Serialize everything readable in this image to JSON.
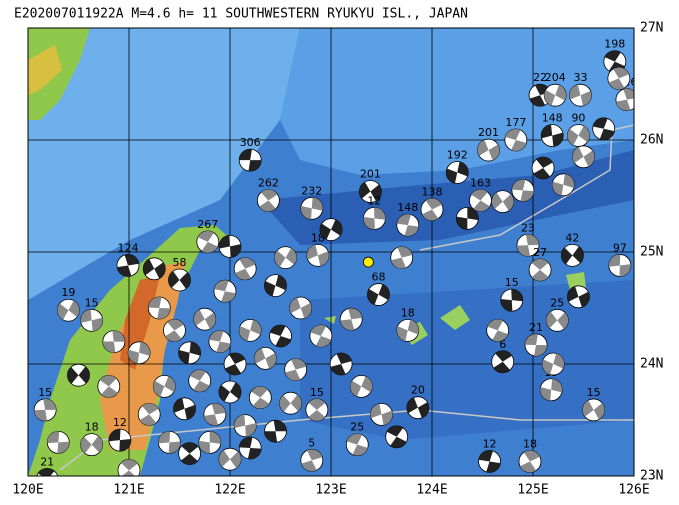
{
  "map": {
    "title": "E202007011922A  M=4.6  h= 11  SOUTHWESTERN RYUKYU ISL., JAPAN",
    "lonlim": [
      120,
      126
    ],
    "latlim": [
      23,
      27
    ],
    "lon_ticks": [
      {
        "value": 120,
        "label": "120E"
      },
      {
        "value": 121,
        "label": "121E"
      },
      {
        "value": 122,
        "label": "122E"
      },
      {
        "value": 123,
        "label": "123E"
      },
      {
        "value": 124,
        "label": "124E"
      },
      {
        "value": 125,
        "label": "125E"
      },
      {
        "value": 126,
        "label": "126E"
      }
    ],
    "lat_ticks": [
      {
        "value": 23,
        "label": "23N"
      },
      {
        "value": 24,
        "label": "24N"
      },
      {
        "value": 25,
        "label": "25N"
      },
      {
        "value": 26,
        "label": "26N"
      },
      {
        "value": 27,
        "label": "27N"
      }
    ],
    "epicenter": {
      "lon": 123.37,
      "lat": 24.91
    },
    "events": [
      {
        "lon": 122.2,
        "lat": 25.82,
        "label": "306"
      },
      {
        "lon": 122.38,
        "lat": 25.46,
        "label": "262"
      },
      {
        "lon": 122.81,
        "lat": 25.39,
        "label": "232"
      },
      {
        "lon": 123.39,
        "lat": 25.54,
        "label": "201"
      },
      {
        "lon": 123.76,
        "lat": 25.24,
        "label": "148"
      },
      {
        "lon": 124.0,
        "lat": 25.38,
        "label": "138"
      },
      {
        "lon": 124.25,
        "lat": 25.71,
        "label": "192"
      },
      {
        "lon": 124.56,
        "lat": 25.91,
        "label": "201"
      },
      {
        "lon": 124.83,
        "lat": 26.0,
        "label": "177"
      },
      {
        "lon": 125.07,
        "lat": 26.4,
        "label": "22"
      },
      {
        "lon": 125.22,
        "lat": 26.4,
        "label": "204"
      },
      {
        "lon": 125.47,
        "lat": 26.4,
        "label": "33"
      },
      {
        "lon": 125.81,
        "lat": 26.7,
        "label": "198"
      },
      {
        "lon": 125.93,
        "lat": 26.36,
        "label": "126"
      },
      {
        "lon": 125.45,
        "lat": 26.04,
        "label": "90"
      },
      {
        "lon": 125.19,
        "lat": 26.04,
        "label": "148"
      },
      {
        "lon": 124.48,
        "lat": 25.46,
        "label": "163"
      },
      {
        "lon": 124.95,
        "lat": 25.06,
        "label": "23"
      },
      {
        "lon": 125.39,
        "lat": 24.97,
        "label": "42"
      },
      {
        "lon": 125.86,
        "lat": 24.88,
        "label": "97"
      },
      {
        "lon": 125.07,
        "lat": 24.84,
        "label": "27"
      },
      {
        "lon": 124.79,
        "lat": 24.57,
        "label": "15"
      },
      {
        "lon": 125.24,
        "lat": 24.39,
        "label": "25"
      },
      {
        "lon": 125.03,
        "lat": 24.17,
        "label": "21"
      },
      {
        "lon": 124.7,
        "lat": 24.02,
        "label": "6"
      },
      {
        "lon": 125.18,
        "lat": 23.77,
        "label": "15"
      },
      {
        "lon": 125.6,
        "lat": 23.59,
        "label": "15"
      },
      {
        "lon": 124.57,
        "lat": 23.13,
        "label": "12"
      },
      {
        "lon": 124.97,
        "lat": 23.13,
        "label": "18"
      },
      {
        "lon": 123.76,
        "lat": 24.3,
        "label": "18"
      },
      {
        "lon": 123.86,
        "lat": 23.61,
        "label": "20"
      },
      {
        "lon": 123.26,
        "lat": 23.28,
        "label": "25"
      },
      {
        "lon": 122.81,
        "lat": 23.14,
        "label": "5"
      },
      {
        "lon": 123.47,
        "lat": 24.62,
        "label": "68"
      },
      {
        "lon": 122.87,
        "lat": 24.97,
        "label": "18"
      },
      {
        "lon": 121.78,
        "lat": 25.09,
        "label": "267"
      },
      {
        "lon": 120.99,
        "lat": 24.88,
        "label": "124"
      },
      {
        "lon": 120.4,
        "lat": 24.48,
        "label": "19"
      },
      {
        "lon": 120.63,
        "lat": 24.39,
        "label": "15"
      },
      {
        "lon": 120.19,
        "lat": 22.97,
        "label": "21"
      },
      {
        "lon": 120.17,
        "lat": 23.59,
        "label": "15"
      },
      {
        "lon": 120.63,
        "lat": 23.28,
        "label": "18"
      },
      {
        "lon": 120.91,
        "lat": 23.32,
        "label": "12"
      },
      {
        "lon": 122.86,
        "lat": 23.59,
        "label": "15"
      },
      {
        "lon": 123.43,
        "lat": 25.3,
        "label": "12"
      },
      {
        "lon": 121.5,
        "lat": 24.75,
        "label": "58"
      },
      {
        "lon": 121.3,
        "lat": 24.5
      },
      {
        "lon": 121.45,
        "lat": 24.3
      },
      {
        "lon": 121.6,
        "lat": 24.1
      },
      {
        "lon": 121.75,
        "lat": 24.4
      },
      {
        "lon": 121.9,
        "lat": 24.2
      },
      {
        "lon": 122.05,
        "lat": 24.0
      },
      {
        "lon": 122.2,
        "lat": 24.3
      },
      {
        "lon": 122.35,
        "lat": 24.05
      },
      {
        "lon": 122.5,
        "lat": 24.25
      },
      {
        "lon": 122.65,
        "lat": 23.95
      },
      {
        "lon": 121.35,
        "lat": 23.8
      },
      {
        "lon": 121.55,
        "lat": 23.6
      },
      {
        "lon": 121.7,
        "lat": 23.85
      },
      {
        "lon": 121.85,
        "lat": 23.55
      },
      {
        "lon": 122.0,
        "lat": 23.75
      },
      {
        "lon": 122.15,
        "lat": 23.45
      },
      {
        "lon": 122.3,
        "lat": 23.7
      },
      {
        "lon": 122.45,
        "lat": 23.4
      },
      {
        "lon": 122.6,
        "lat": 23.65
      },
      {
        "lon": 121.4,
        "lat": 23.3
      },
      {
        "lon": 121.6,
        "lat": 23.2
      },
      {
        "lon": 121.8,
        "lat": 23.3
      },
      {
        "lon": 122.0,
        "lat": 23.15
      },
      {
        "lon": 122.2,
        "lat": 23.25
      },
      {
        "lon": 121.2,
        "lat": 23.55
      },
      {
        "lon": 121.1,
        "lat": 24.1
      },
      {
        "lon": 121.25,
        "lat": 24.85
      },
      {
        "lon": 121.95,
        "lat": 24.65
      },
      {
        "lon": 122.15,
        "lat": 24.85
      },
      {
        "lon": 122.45,
        "lat": 24.7
      },
      {
        "lon": 122.7,
        "lat": 24.5
      },
      {
        "lon": 122.9,
        "lat": 24.25
      },
      {
        "lon": 123.1,
        "lat": 24.0
      },
      {
        "lon": 123.3,
        "lat": 23.8
      },
      {
        "lon": 123.5,
        "lat": 23.55
      },
      {
        "lon": 123.65,
        "lat": 23.35
      },
      {
        "lon": 123.2,
        "lat": 24.4
      },
      {
        "lon": 122.55,
        "lat": 24.95
      },
      {
        "lon": 122.0,
        "lat": 25.05
      },
      {
        "lon": 120.8,
        "lat": 23.8
      },
      {
        "lon": 120.85,
        "lat": 24.2
      },
      {
        "lon": 120.5,
        "lat": 23.9
      },
      {
        "lon": 120.3,
        "lat": 23.3
      },
      {
        "lon": 121.0,
        "lat": 23.05
      },
      {
        "lon": 124.35,
        "lat": 25.3
      },
      {
        "lon": 124.7,
        "lat": 25.45
      },
      {
        "lon": 124.9,
        "lat": 25.55
      },
      {
        "lon": 125.1,
        "lat": 25.75
      },
      {
        "lon": 125.3,
        "lat": 25.6
      },
      {
        "lon": 125.5,
        "lat": 25.85
      },
      {
        "lon": 125.7,
        "lat": 26.1
      },
      {
        "lon": 125.85,
        "lat": 26.55
      },
      {
        "lon": 125.2,
        "lat": 24.0
      },
      {
        "lon": 125.45,
        "lat": 24.6
      },
      {
        "lon": 124.65,
        "lat": 24.3
      },
      {
        "lon": 123.7,
        "lat": 24.95
      },
      {
        "lon": 123.0,
        "lat": 25.2
      }
    ]
  }
}
